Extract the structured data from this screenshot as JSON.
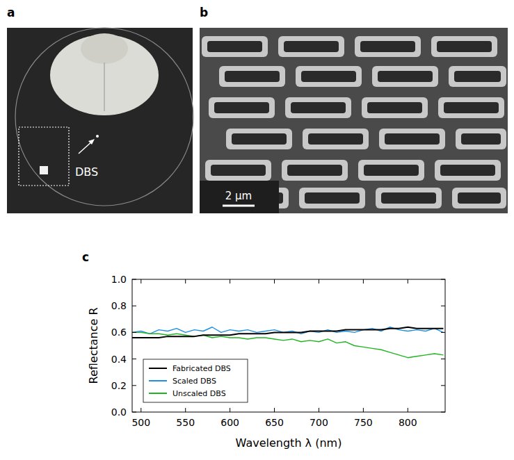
{
  "images": {
    "a": {
      "letter": "a",
      "label": "DBS"
    },
    "b": {
      "letter": "b",
      "scale_bar": "2 µm"
    }
  },
  "chart_data": {
    "type": "line",
    "panel_label": "c",
    "x_label": "Wavelength λ (nm)",
    "y_label": "Reflectance R",
    "x": [
      490,
      500,
      510,
      520,
      530,
      540,
      550,
      560,
      570,
      580,
      590,
      600,
      610,
      620,
      630,
      640,
      650,
      660,
      670,
      680,
      690,
      700,
      710,
      720,
      730,
      740,
      750,
      760,
      770,
      780,
      790,
      800,
      810,
      820,
      830,
      840
    ],
    "series": [
      {
        "name": "Fabricated DBS",
        "color": "#000000",
        "values": [
          0.56,
          0.56,
          0.56,
          0.56,
          0.57,
          0.57,
          0.57,
          0.57,
          0.58,
          0.58,
          0.58,
          0.58,
          0.59,
          0.59,
          0.59,
          0.59,
          0.6,
          0.6,
          0.6,
          0.6,
          0.61,
          0.61,
          0.61,
          0.61,
          0.62,
          0.62,
          0.62,
          0.62,
          0.62,
          0.63,
          0.63,
          0.64,
          0.63,
          0.63,
          0.63,
          0.63
        ]
      },
      {
        "name": "Scaled DBS",
        "color": "#1f8fe0",
        "values": [
          0.6,
          0.61,
          0.59,
          0.62,
          0.61,
          0.63,
          0.6,
          0.62,
          0.61,
          0.64,
          0.6,
          0.62,
          0.61,
          0.62,
          0.6,
          0.61,
          0.62,
          0.6,
          0.61,
          0.59,
          0.61,
          0.6,
          0.62,
          0.6,
          0.61,
          0.6,
          0.62,
          0.63,
          0.61,
          0.64,
          0.62,
          0.61,
          0.62,
          0.61,
          0.63,
          0.6
        ]
      },
      {
        "name": "Unscaled DBS",
        "color": "#1fb51f",
        "values": [
          0.6,
          0.6,
          0.59,
          0.59,
          0.58,
          0.59,
          0.58,
          0.57,
          0.58,
          0.56,
          0.57,
          0.56,
          0.56,
          0.55,
          0.56,
          0.56,
          0.55,
          0.54,
          0.55,
          0.53,
          0.54,
          0.53,
          0.55,
          0.52,
          0.53,
          0.5,
          0.49,
          0.48,
          0.47,
          0.45,
          0.43,
          0.41,
          0.42,
          0.43,
          0.44,
          0.43
        ]
      }
    ],
    "xlim": [
      490,
      842
    ],
    "xticks": [
      500,
      550,
      600,
      650,
      700,
      750,
      800
    ],
    "ylim": [
      0,
      1
    ],
    "yticks": [
      {
        "value": 0,
        "label": "0.0"
      },
      0.2,
      0.4,
      0.6,
      0.8,
      {
        "value": 1,
        "label": "1.0"
      }
    ],
    "legend": "lower left",
    "grid": false
  }
}
